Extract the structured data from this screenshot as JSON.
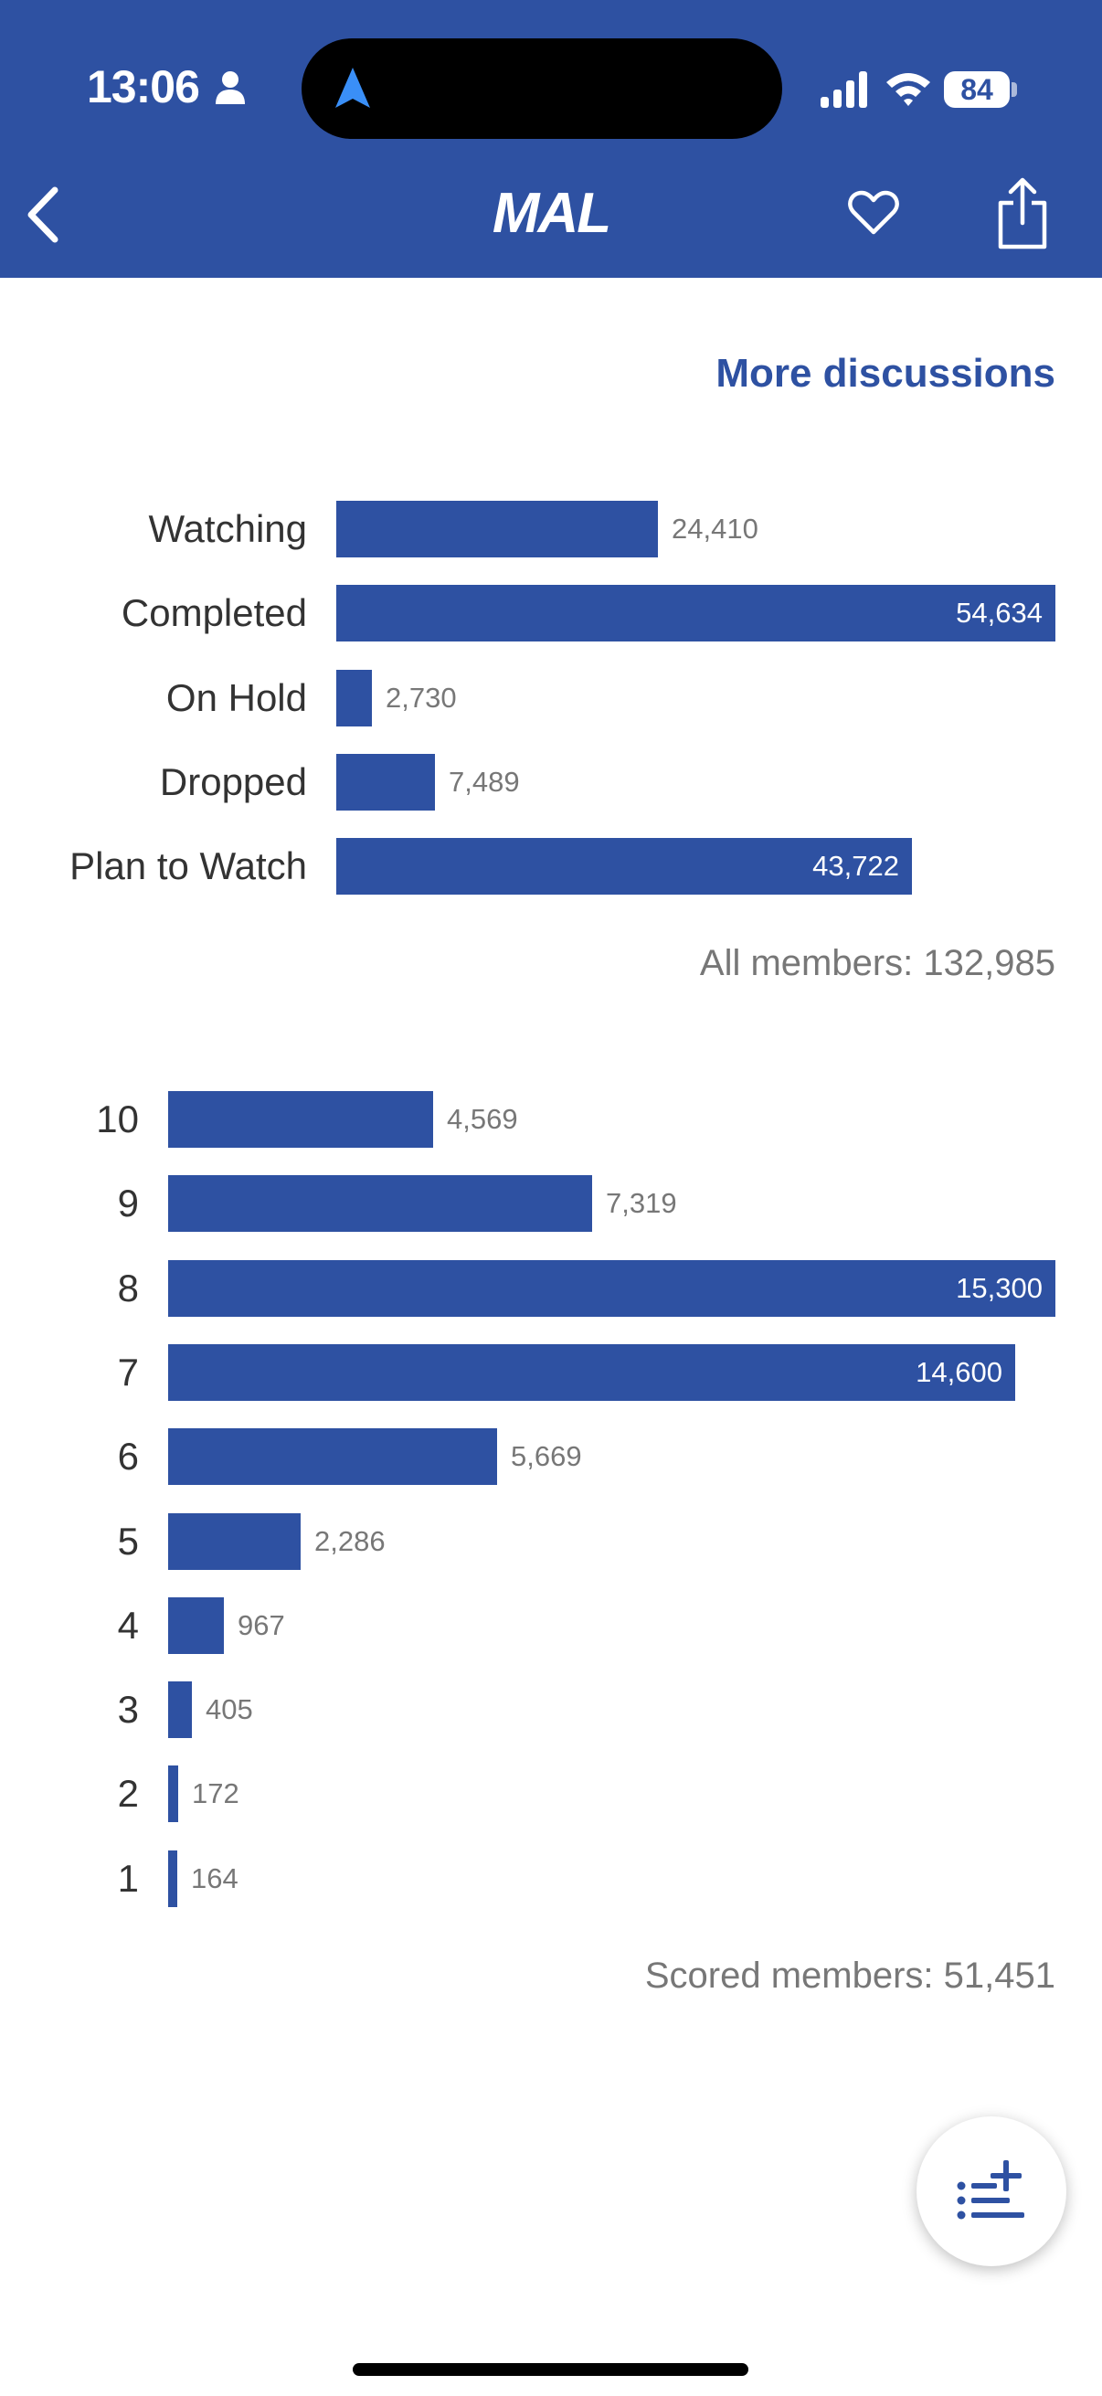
{
  "status_bar": {
    "time": "13:06",
    "battery": "84",
    "icons": [
      "person-icon",
      "navigation-arrow-icon",
      "signal-icon",
      "wifi-icon",
      "battery-icon"
    ]
  },
  "header": {
    "logo": "MAL",
    "icons": [
      "back-icon",
      "heart-icon",
      "share-icon"
    ],
    "background": "#2e51a2"
  },
  "more_discussions": "More discussions",
  "status_chart": {
    "rows": [
      {
        "label": "Watching",
        "value": 24410,
        "display": "24,410"
      },
      {
        "label": "Completed",
        "value": 54634,
        "display": "54,634"
      },
      {
        "label": "On Hold",
        "value": 2730,
        "display": "2,730"
      },
      {
        "label": "Dropped",
        "value": 7489,
        "display": "7,489"
      },
      {
        "label": "Plan to Watch",
        "value": 43722,
        "display": "43,722"
      }
    ],
    "total": "All members: 132,985"
  },
  "score_chart": {
    "rows": [
      {
        "label": "10",
        "value": 4569,
        "display": "4,569"
      },
      {
        "label": "9",
        "value": 7319,
        "display": "7,319"
      },
      {
        "label": "8",
        "value": 15300,
        "display": "15,300"
      },
      {
        "label": "7",
        "value": 14600,
        "display": "14,600"
      },
      {
        "label": "6",
        "value": 5669,
        "display": "5,669"
      },
      {
        "label": "5",
        "value": 2286,
        "display": "2,286"
      },
      {
        "label": "4",
        "value": 967,
        "display": "967"
      },
      {
        "label": "3",
        "value": 405,
        "display": "405"
      },
      {
        "label": "2",
        "value": 172,
        "display": "172"
      },
      {
        "label": "1",
        "value": 164,
        "display": "164"
      }
    ],
    "total": "Scored members: 51,451"
  },
  "fab": {
    "icon": "add-to-list-icon"
  },
  "colors": {
    "accent": "#2e51a2",
    "muted": "#777777"
  }
}
